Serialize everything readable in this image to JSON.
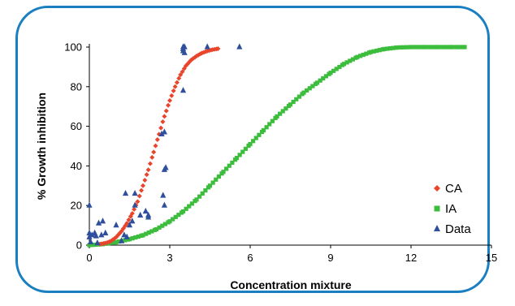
{
  "chart_data": {
    "type": "scatter",
    "xlabel": "Concentration mixture",
    "ylabel": "% Growth inhibition",
    "xlim": [
      0,
      15
    ],
    "ylim": [
      0,
      100
    ],
    "xticks": [
      0,
      3,
      6,
      9,
      12,
      15
    ],
    "yticks": [
      0,
      20,
      40,
      60,
      80,
      100
    ],
    "grid": false,
    "legend": "right",
    "series": [
      {
        "name": "CA",
        "color": "#e8452c",
        "marker": "diamond",
        "x": [
          0.4,
          0.6,
          0.8,
          1.0,
          1.2,
          1.4,
          1.6,
          1.8,
          2.0,
          2.2,
          2.4,
          2.6,
          2.8,
          3.0,
          3.2,
          3.4,
          3.6,
          3.8,
          4.0,
          4.2,
          4.4,
          4.6,
          4.8
        ],
        "y": [
          0.5,
          1,
          2,
          4,
          7,
          11,
          16,
          22,
          30,
          38,
          47,
          56,
          65,
          73,
          80,
          86,
          90.5,
          93.5,
          95.5,
          97,
          98,
          98.7,
          99.2
        ]
      },
      {
        "name": "IA",
        "color": "#3dbd3d",
        "marker": "square",
        "x": [
          0,
          0.5,
          1,
          1.5,
          2,
          2.5,
          3,
          3.5,
          4,
          4.5,
          5,
          5.5,
          6,
          6.5,
          7,
          7.5,
          8,
          8.5,
          9,
          9.5,
          10,
          10.5,
          11,
          11.5,
          12,
          12.5,
          13,
          13.5,
          14
        ],
        "y": [
          0,
          0.5,
          1.5,
          3,
          5,
          8,
          12,
          17,
          23,
          30,
          37,
          44,
          51,
          58,
          65,
          71,
          77,
          82,
          87,
          91.5,
          95,
          97.5,
          99,
          99.8,
          100,
          100,
          100,
          100,
          100
        ]
      },
      {
        "name": "Data",
        "color": "#2f4f9c",
        "marker": "triangle",
        "x": [
          0.0,
          0.0,
          0.0,
          0.05,
          0.1,
          0.2,
          0.25,
          0.3,
          0.35,
          0.45,
          0.5,
          0.6,
          1.0,
          1.2,
          1.3,
          1.35,
          1.4,
          1.5,
          1.6,
          1.7,
          1.7,
          1.9,
          2.1,
          2.2,
          2.2,
          2.7,
          2.75,
          2.8,
          2.8,
          2.85,
          2.8,
          3.5,
          3.5,
          3.5,
          3.55,
          3.5,
          3.55,
          4.4,
          5.6
        ],
        "y": [
          20,
          6,
          4,
          1.5,
          5,
          6,
          4.5,
          1,
          11,
          5,
          12,
          6,
          10,
          2,
          5,
          26,
          4,
          10,
          12,
          20,
          26,
          15,
          17,
          15,
          14,
          56,
          25,
          20,
          38,
          39,
          57,
          78,
          98,
          100,
          100,
          99,
          97,
          100,
          100
        ]
      }
    ]
  }
}
